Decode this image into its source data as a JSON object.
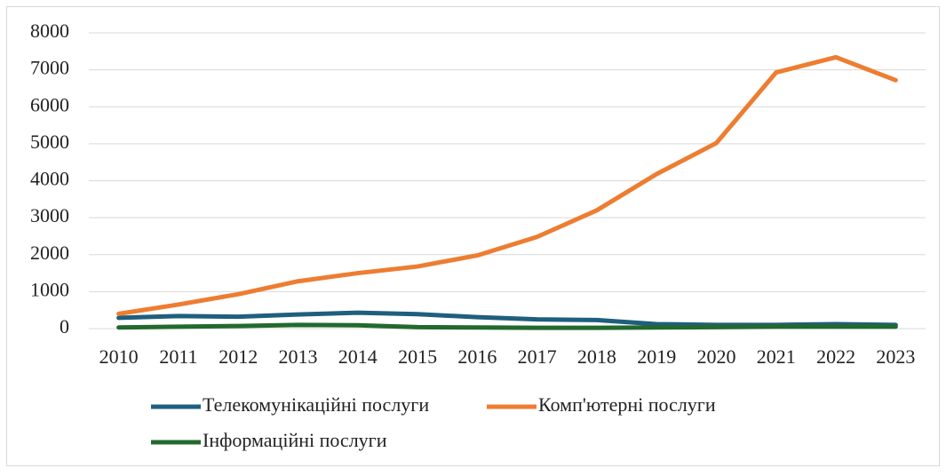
{
  "chart_data": {
    "type": "line",
    "categories": [
      "2010",
      "2011",
      "2012",
      "2013",
      "2014",
      "2015",
      "2016",
      "2017",
      "2018",
      "2019",
      "2020",
      "2021",
      "2022",
      "2023"
    ],
    "series": [
      {
        "name": "Телекомунікаційні послуги",
        "color": "#1f5f7d",
        "values": [
          290,
          340,
          320,
          380,
          430,
          390,
          310,
          250,
          230,
          120,
          100,
          100,
          120,
          100
        ]
      },
      {
        "name": "Комп'ютерні послуги",
        "color": "#ed7d31",
        "values": [
          400,
          650,
          930,
          1280,
          1500,
          1680,
          1980,
          2480,
          3200,
          4180,
          5020,
          6930,
          7340,
          6720
        ]
      },
      {
        "name": "Інформаційні послуги",
        "color": "#22692e",
        "values": [
          30,
          50,
          70,
          100,
          90,
          40,
          30,
          20,
          20,
          30,
          40,
          50,
          50,
          50
        ]
      }
    ],
    "ylim": [
      0,
      8000
    ],
    "yticks": [
      0,
      1000,
      2000,
      3000,
      4000,
      5000,
      6000,
      7000,
      8000
    ],
    "grid": true,
    "legend": "bottom"
  }
}
